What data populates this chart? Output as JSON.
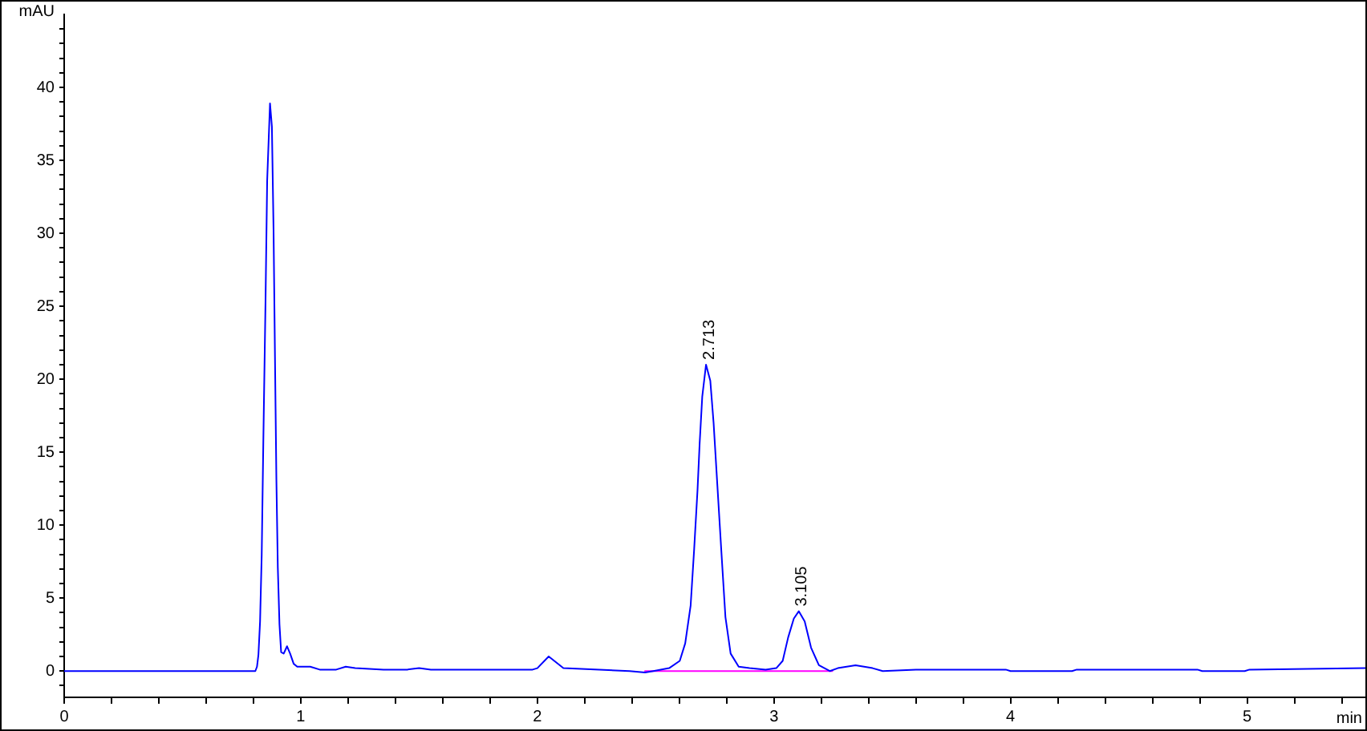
{
  "chart_data": {
    "type": "line",
    "xlabel": "min",
    "ylabel": "mAU",
    "xlim": [
      0,
      5.5
    ],
    "ylim": [
      -1.8,
      45
    ],
    "xticks": [
      0,
      {
        "value": 0.2,
        "label": null
      },
      {
        "value": 0.4,
        "label": null
      },
      {
        "value": 0.6,
        "label": null
      },
      {
        "value": 0.8,
        "label": null
      },
      1,
      {
        "value": 1.2,
        "label": null
      },
      {
        "value": 1.4,
        "label": null
      },
      {
        "value": 1.6,
        "label": null
      },
      {
        "value": 1.8,
        "label": null
      },
      2,
      {
        "value": 2.2,
        "label": null
      },
      {
        "value": 2.4,
        "label": null
      },
      {
        "value": 2.6,
        "label": null
      },
      {
        "value": 2.8,
        "label": null
      },
      3,
      {
        "value": 3.2,
        "label": null
      },
      {
        "value": 3.4,
        "label": null
      },
      {
        "value": 3.6,
        "label": null
      },
      {
        "value": 3.8,
        "label": null
      },
      4,
      {
        "value": 4.2,
        "label": null
      },
      {
        "value": 4.4,
        "label": null
      },
      {
        "value": 4.6,
        "label": null
      },
      {
        "value": 4.8,
        "label": null
      },
      5,
      {
        "value": 5.2,
        "label": null
      },
      {
        "value": 5.4,
        "label": null
      }
    ],
    "yticks": [
      {
        "value": -1,
        "label": null
      },
      0,
      {
        "value": 1,
        "label": null
      },
      {
        "value": 2,
        "label": null
      },
      {
        "value": 3,
        "label": null
      },
      {
        "value": 4,
        "label": null
      },
      5,
      {
        "value": 6,
        "label": null
      },
      {
        "value": 7,
        "label": null
      },
      {
        "value": 8,
        "label": null
      },
      {
        "value": 9,
        "label": null
      },
      10,
      {
        "value": 11,
        "label": null
      },
      {
        "value": 12,
        "label": null
      },
      {
        "value": 13,
        "label": null
      },
      {
        "value": 14,
        "label": null
      },
      15,
      {
        "value": 16,
        "label": null
      },
      {
        "value": 17,
        "label": null
      },
      {
        "value": 18,
        "label": null
      },
      {
        "value": 19,
        "label": null
      },
      20,
      {
        "value": 21,
        "label": null
      },
      {
        "value": 22,
        "label": null
      },
      {
        "value": 23,
        "label": null
      },
      {
        "value": 24,
        "label": null
      },
      25,
      {
        "value": 26,
        "label": null
      },
      {
        "value": 27,
        "label": null
      },
      {
        "value": 28,
        "label": null
      },
      {
        "value": 29,
        "label": null
      },
      30,
      {
        "value": 31,
        "label": null
      },
      {
        "value": 32,
        "label": null
      },
      {
        "value": 33,
        "label": null
      },
      {
        "value": 34,
        "label": null
      },
      35,
      {
        "value": 36,
        "label": null
      },
      {
        "value": 37,
        "label": null
      },
      {
        "value": 38,
        "label": null
      },
      {
        "value": 39,
        "label": null
      },
      40,
      {
        "value": 41,
        "label": null
      },
      {
        "value": 42,
        "label": null
      },
      {
        "value": 43,
        "label": null
      },
      {
        "value": 44,
        "label": null
      }
    ],
    "marker": "none",
    "line_style": "solid",
    "series": [
      {
        "color": "#0000ff",
        "x": [
          0,
          0.808,
          0.815,
          0.821,
          0.828,
          0.835,
          0.842,
          0.851,
          0.858,
          0.87,
          0.878,
          0.885,
          0.891,
          0.897,
          0.903,
          0.91,
          0.917,
          0.928,
          0.942,
          0.955,
          0.97,
          0.985,
          1.04,
          1.08,
          1.15,
          1.19,
          1.23,
          1.35,
          1.45,
          1.5,
          1.55,
          1.98,
          2.0,
          2.048,
          2.11,
          2.39,
          2.455,
          2.49,
          2.557,
          2.602,
          2.625,
          2.648,
          2.663,
          2.677,
          2.686,
          2.697,
          2.713,
          2.731,
          2.745,
          2.761,
          2.777,
          2.795,
          2.817,
          2.851,
          2.897,
          2.965,
          3.01,
          3.037,
          3.06,
          3.084,
          3.105,
          3.13,
          3.157,
          3.19,
          3.236,
          3.27,
          3.345,
          3.417,
          3.46,
          3.6,
          3.98,
          4.0,
          4.26,
          4.28,
          4.79,
          4.81,
          4.99,
          5.01,
          5.5
        ],
        "values": [
          0,
          0,
          0.3,
          1.1,
          3.4,
          8.0,
          16.0,
          25.3,
          33.6,
          38.9,
          37.3,
          30.2,
          21.5,
          13.1,
          7.1,
          3.2,
          1.3,
          1.2,
          1.7,
          1.2,
          0.5,
          0.3,
          0.3,
          0.1,
          0.1,
          0.3,
          0.2,
          0.1,
          0.1,
          0.2,
          0.1,
          0.1,
          0.2,
          1.0,
          0.2,
          0.0,
          -0.1,
          0.0,
          0.2,
          0.7,
          1.9,
          4.5,
          8.4,
          12.4,
          15.6,
          18.8,
          21.0,
          19.9,
          17.0,
          12.7,
          8.4,
          3.7,
          1.2,
          0.3,
          0.2,
          0.1,
          0.2,
          0.7,
          2.3,
          3.6,
          4.1,
          3.4,
          1.6,
          0.4,
          0.0,
          0.2,
          0.4,
          0.2,
          0.0,
          0.1,
          0.1,
          0.0,
          0.0,
          0.1,
          0.1,
          0.0,
          0.0,
          0.1,
          0.2
        ]
      },
      {
        "color": "#ff00ff",
        "x": [
          2.455,
          3.247
        ],
        "values": [
          0,
          0
        ]
      }
    ],
    "annotations": [
      {
        "text": "2.713",
        "x": 2.713,
        "y": 21.0
      },
      {
        "text": "3.105",
        "x": 3.105,
        "y": 4.1
      }
    ]
  }
}
